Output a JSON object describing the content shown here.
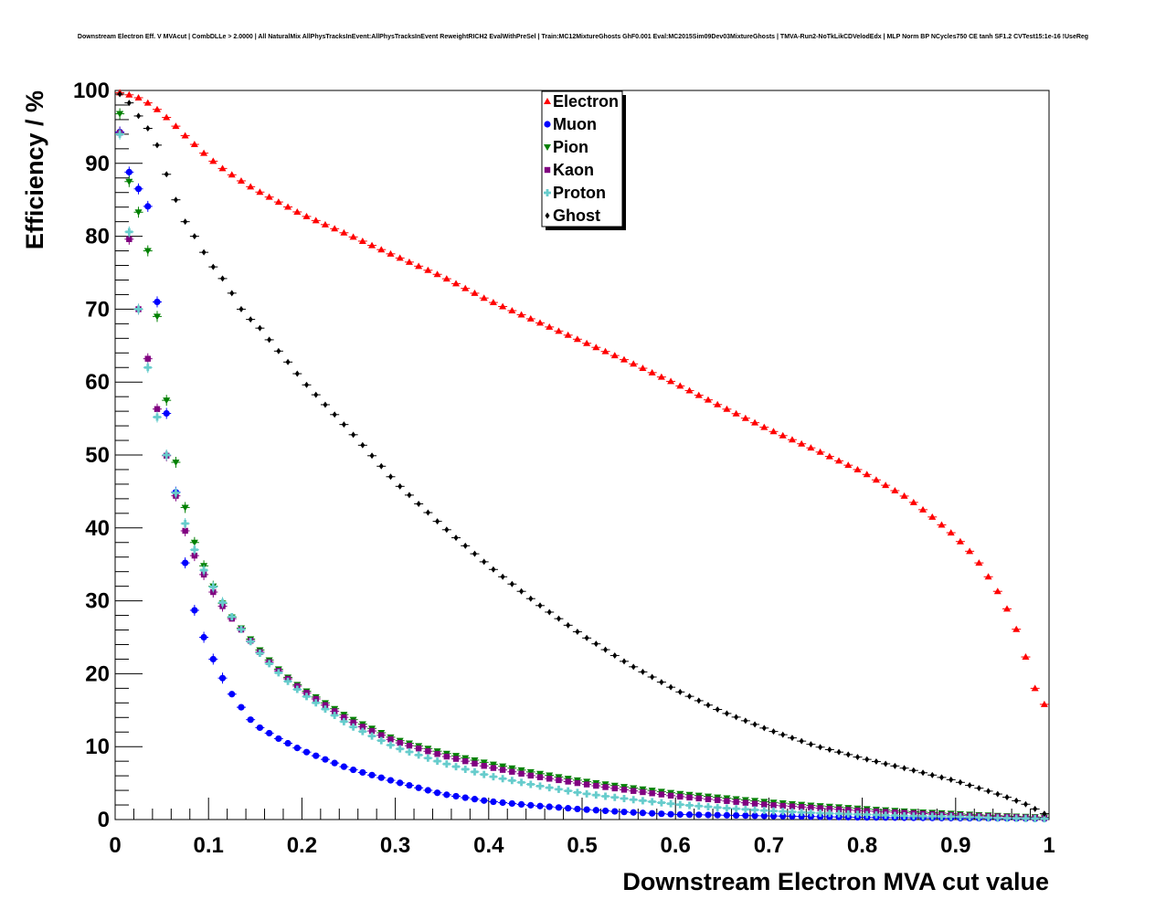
{
  "chart_data": {
    "type": "scatter",
    "title": "Downstream Electron Eff. V MVAcut | CombDLLe > 2.0000 | All NaturalMix AllPhysTracksInEvent:AllPhysTracksInEvent ReweightRICH2 EvalWithPreSel | Train:MC12MixtureGhosts GhF0.001 Eval:MC2015Sim09Dev03MixtureGhosts | TMVA-Run2-NoTkLikCDVelodEdx | MLP Norm BP NCycles750 CE tanh SF1.2 CVTest15:1e-16 !UseReg",
    "xlabel": "Downstream Electron MVA cut value",
    "ylabel": "Efficiency / %",
    "xlim": [
      0,
      1
    ],
    "ylim": [
      0,
      100
    ],
    "x_ticks": [
      "0",
      "0.1",
      "0.2",
      "0.3",
      "0.4",
      "0.5",
      "0.6",
      "0.7",
      "0.8",
      "0.9",
      "1"
    ],
    "y_ticks": [
      "0",
      "10",
      "20",
      "30",
      "40",
      "50",
      "60",
      "70",
      "80",
      "90",
      "100"
    ],
    "grid": false,
    "legend_position": "top-center",
    "series": [
      {
        "name": "Electron",
        "color": "#ff0000",
        "marker": "triangle-up",
        "anchors": [
          [
            0.005,
            99.7
          ],
          [
            0.015,
            99.4
          ],
          [
            0.025,
            99.0
          ],
          [
            0.035,
            98.3
          ],
          [
            0.045,
            97.4
          ],
          [
            0.055,
            96.3
          ],
          [
            0.065,
            95.1
          ],
          [
            0.075,
            93.8
          ],
          [
            0.085,
            92.6
          ],
          [
            0.095,
            91.4
          ],
          [
            0.105,
            90.3
          ],
          [
            0.115,
            89.3
          ],
          [
            0.13,
            88.0
          ],
          [
            0.15,
            86.4
          ],
          [
            0.2,
            83.0
          ],
          [
            0.25,
            80.2
          ],
          [
            0.3,
            77.3
          ],
          [
            0.35,
            74.5
          ],
          [
            0.4,
            71.2
          ],
          [
            0.45,
            68.4
          ],
          [
            0.5,
            65.6
          ],
          [
            0.55,
            62.8
          ],
          [
            0.6,
            59.8
          ],
          [
            0.65,
            56.6
          ],
          [
            0.7,
            53.5
          ],
          [
            0.75,
            50.7
          ],
          [
            0.8,
            47.7
          ],
          [
            0.85,
            44.0
          ],
          [
            0.875,
            41.5
          ],
          [
            0.9,
            38.8
          ],
          [
            0.915,
            36.8
          ],
          [
            0.925,
            35.2
          ],
          [
            0.935,
            33.3
          ],
          [
            0.945,
            31.3
          ],
          [
            0.955,
            28.9
          ],
          [
            0.965,
            26.1
          ],
          [
            0.975,
            22.3
          ],
          [
            0.985,
            18.0
          ],
          [
            0.995,
            15.8
          ]
        ]
      },
      {
        "name": "Muon",
        "color": "#0000ff",
        "marker": "circle",
        "anchors": [
          [
            0.005,
            94.3
          ],
          [
            0.015,
            88.8
          ],
          [
            0.025,
            86.5
          ],
          [
            0.035,
            84.1
          ],
          [
            0.045,
            71.0
          ],
          [
            0.055,
            55.7
          ],
          [
            0.065,
            44.9
          ],
          [
            0.075,
            35.2
          ],
          [
            0.085,
            28.7
          ],
          [
            0.095,
            25.0
          ],
          [
            0.105,
            22.0
          ],
          [
            0.115,
            19.4
          ],
          [
            0.125,
            17.2
          ],
          [
            0.135,
            15.4
          ],
          [
            0.145,
            13.7
          ],
          [
            0.155,
            12.6
          ],
          [
            0.175,
            11.1
          ],
          [
            0.2,
            9.5
          ],
          [
            0.25,
            7.0
          ],
          [
            0.3,
            5.2
          ],
          [
            0.35,
            3.5
          ],
          [
            0.4,
            2.5
          ],
          [
            0.45,
            1.9
          ],
          [
            0.5,
            1.4
          ],
          [
            0.55,
            1.0
          ],
          [
            0.6,
            0.7
          ],
          [
            0.7,
            0.5
          ],
          [
            0.8,
            0.3
          ],
          [
            0.9,
            0.2
          ],
          [
            1.0,
            0.1
          ]
        ]
      },
      {
        "name": "Pion",
        "color": "#008000",
        "marker": "triangle-down",
        "anchors": [
          [
            0.005,
            96.8
          ],
          [
            0.015,
            87.5
          ],
          [
            0.025,
            83.3
          ],
          [
            0.035,
            78.0
          ],
          [
            0.045,
            69.0
          ],
          [
            0.055,
            57.5
          ],
          [
            0.065,
            49.0
          ],
          [
            0.075,
            42.8
          ],
          [
            0.085,
            38.0
          ],
          [
            0.095,
            34.8
          ],
          [
            0.105,
            32.0
          ],
          [
            0.12,
            28.5
          ],
          [
            0.14,
            25.5
          ],
          [
            0.16,
            22.5
          ],
          [
            0.18,
            20.0
          ],
          [
            0.2,
            18.0
          ],
          [
            0.25,
            14.0
          ],
          [
            0.3,
            11.0
          ],
          [
            0.35,
            9.2
          ],
          [
            0.4,
            7.7
          ],
          [
            0.45,
            6.4
          ],
          [
            0.5,
            5.3
          ],
          [
            0.55,
            4.4
          ],
          [
            0.6,
            3.6
          ],
          [
            0.65,
            3.0
          ],
          [
            0.7,
            2.4
          ],
          [
            0.75,
            1.9
          ],
          [
            0.8,
            1.5
          ],
          [
            0.85,
            1.1
          ],
          [
            0.9,
            0.8
          ],
          [
            0.95,
            0.5
          ],
          [
            1.0,
            0.3
          ]
        ]
      },
      {
        "name": "Kaon",
        "color": "#800080",
        "marker": "square",
        "anchors": [
          [
            0.005,
            94.2
          ],
          [
            0.015,
            79.6
          ],
          [
            0.025,
            70.0
          ],
          [
            0.035,
            63.2
          ],
          [
            0.045,
            56.3
          ],
          [
            0.055,
            49.9
          ],
          [
            0.065,
            44.4
          ],
          [
            0.075,
            39.6
          ],
          [
            0.085,
            36.2
          ],
          [
            0.095,
            33.6
          ],
          [
            0.105,
            31.2
          ],
          [
            0.12,
            28.3
          ],
          [
            0.14,
            25.3
          ],
          [
            0.16,
            22.2
          ],
          [
            0.18,
            19.8
          ],
          [
            0.2,
            17.8
          ],
          [
            0.25,
            13.6
          ],
          [
            0.3,
            10.7
          ],
          [
            0.35,
            8.8
          ],
          [
            0.4,
            7.2
          ],
          [
            0.45,
            5.9
          ],
          [
            0.5,
            4.9
          ],
          [
            0.55,
            4.0
          ],
          [
            0.6,
            3.2
          ],
          [
            0.65,
            2.6
          ],
          [
            0.7,
            2.0
          ],
          [
            0.75,
            1.6
          ],
          [
            0.8,
            1.2
          ],
          [
            0.85,
            0.9
          ],
          [
            0.9,
            0.6
          ],
          [
            0.95,
            0.4
          ],
          [
            1.0,
            0.2
          ]
        ]
      },
      {
        "name": "Proton",
        "color": "#66cccc",
        "marker": "cross",
        "anchors": [
          [
            0.005,
            94.0
          ],
          [
            0.015,
            80.6
          ],
          [
            0.025,
            70.0
          ],
          [
            0.035,
            62.0
          ],
          [
            0.045,
            55.2
          ],
          [
            0.055,
            50.0
          ],
          [
            0.065,
            44.8
          ],
          [
            0.075,
            40.6
          ],
          [
            0.085,
            37.0
          ],
          [
            0.095,
            34.2
          ],
          [
            0.105,
            31.9
          ],
          [
            0.12,
            28.7
          ],
          [
            0.14,
            25.2
          ],
          [
            0.16,
            22.0
          ],
          [
            0.18,
            19.5
          ],
          [
            0.2,
            17.3
          ],
          [
            0.25,
            13.0
          ],
          [
            0.3,
            9.9
          ],
          [
            0.35,
            7.8
          ],
          [
            0.4,
            6.0
          ],
          [
            0.45,
            4.7
          ],
          [
            0.5,
            3.6
          ],
          [
            0.55,
            2.8
          ],
          [
            0.6,
            2.1
          ],
          [
            0.65,
            1.6
          ],
          [
            0.7,
            1.2
          ],
          [
            0.75,
            0.9
          ],
          [
            0.8,
            0.7
          ],
          [
            0.85,
            0.5
          ],
          [
            0.9,
            0.4
          ],
          [
            0.95,
            0.2
          ],
          [
            1.0,
            0.1
          ]
        ]
      },
      {
        "name": "Ghost",
        "color": "#000000",
        "marker": "diamond",
        "anchors": [
          [
            0.005,
            99.5
          ],
          [
            0.015,
            98.3
          ],
          [
            0.025,
            96.5
          ],
          [
            0.035,
            94.8
          ],
          [
            0.045,
            92.5
          ],
          [
            0.055,
            88.5
          ],
          [
            0.065,
            85.0
          ],
          [
            0.075,
            82.0
          ],
          [
            0.085,
            80.0
          ],
          [
            0.095,
            77.8
          ],
          [
            0.105,
            75.8
          ],
          [
            0.115,
            74.2
          ],
          [
            0.125,
            72.2
          ],
          [
            0.135,
            70.0
          ],
          [
            0.145,
            68.6
          ],
          [
            0.155,
            67.4
          ],
          [
            0.17,
            65.0
          ],
          [
            0.19,
            62.0
          ],
          [
            0.2,
            60.3
          ],
          [
            0.25,
            53.5
          ],
          [
            0.3,
            46.3
          ],
          [
            0.35,
            40.3
          ],
          [
            0.4,
            34.8
          ],
          [
            0.45,
            29.8
          ],
          [
            0.5,
            25.3
          ],
          [
            0.55,
            21.3
          ],
          [
            0.6,
            17.8
          ],
          [
            0.65,
            14.8
          ],
          [
            0.7,
            12.3
          ],
          [
            0.75,
            10.1
          ],
          [
            0.8,
            8.4
          ],
          [
            0.85,
            6.9
          ],
          [
            0.9,
            5.3
          ],
          [
            0.95,
            3.3
          ],
          [
            0.975,
            2.1
          ],
          [
            0.995,
            0.8
          ]
        ]
      }
    ]
  }
}
